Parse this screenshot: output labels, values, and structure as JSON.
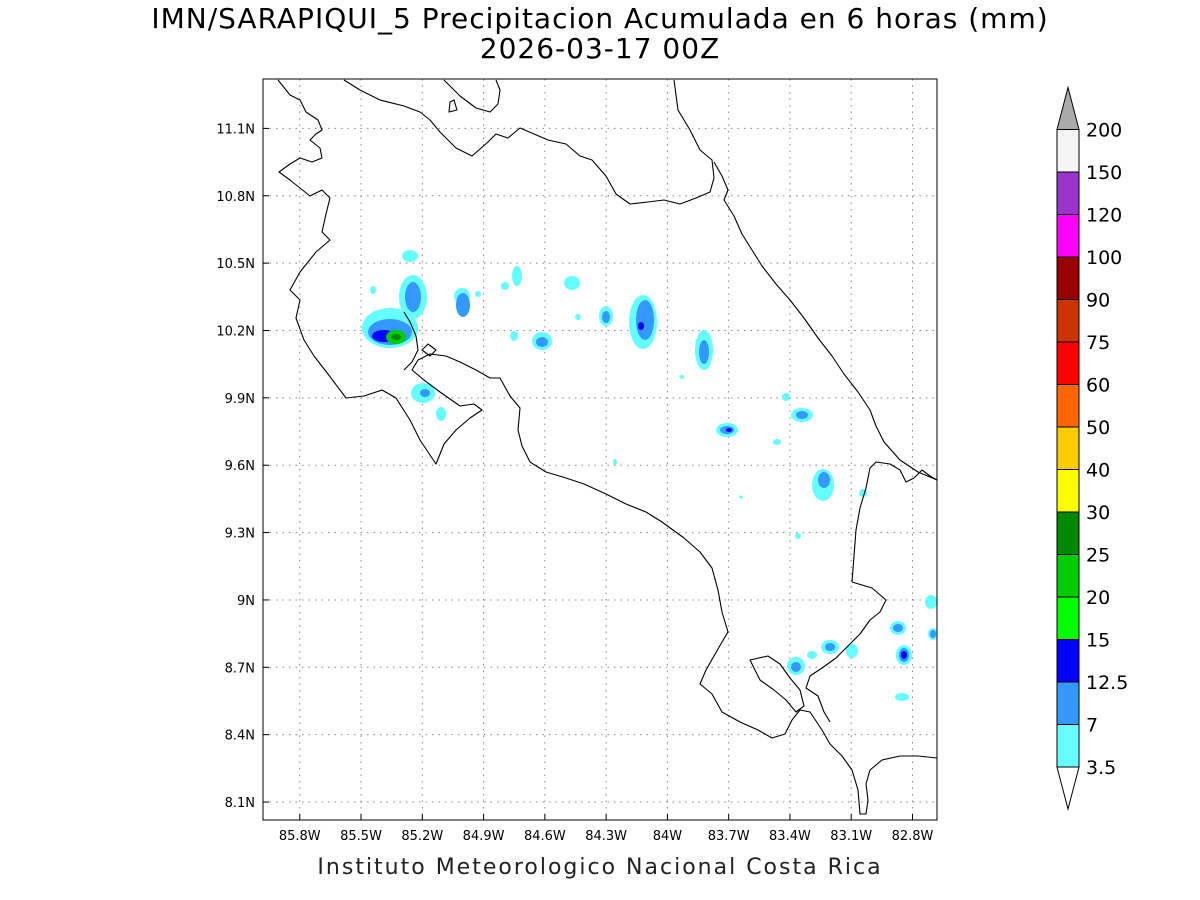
{
  "title": {
    "line1": "IMN/SARAPIQUI_5 Precipitacion Acumulada en 6 horas (mm)",
    "line2": "2026-03-17 00Z"
  },
  "footer": "Instituto Meteorologico Nacional Costa Rica",
  "map": {
    "lon_range": [
      -85.98,
      -82.68
    ],
    "lat_range": [
      8.02,
      11.32
    ],
    "lon_ticks": [
      "85.8W",
      "85.5W",
      "85.2W",
      "84.9W",
      "84.6W",
      "84.3W",
      "84W",
      "83.7W",
      "83.4W",
      "83.1W",
      "82.8W"
    ],
    "lat_ticks": [
      "11.1N",
      "10.8N",
      "10.5N",
      "10.2N",
      "9.9N",
      "9.6N",
      "9.3N",
      "9N",
      "8.7N",
      "8.4N",
      "8.1N"
    ],
    "grid": true,
    "coast_color": "#000000"
  },
  "colorbar": {
    "labels": [
      "3.5",
      "7",
      "12.5",
      "15",
      "20",
      "25",
      "30",
      "40",
      "50",
      "60",
      "75",
      "90",
      "100",
      "120",
      "150",
      "200"
    ],
    "colors": [
      "#66ffff",
      "#3399ff",
      "#0000ff",
      "#00ff00",
      "#00cc00",
      "#008800",
      "#ffff00",
      "#ffcc00",
      "#ff6600",
      "#ff0000",
      "#cc3300",
      "#990000",
      "#ff00ff",
      "#9933cc",
      "#f5f5f5",
      "#aaaaaa"
    ],
    "extend": "both"
  },
  "precip_colors": {
    "light": "#66ffff",
    "moderate": "#3399ff",
    "heavy": "#0000ff",
    "very_heavy": "#00cc00",
    "core": "#008800"
  }
}
